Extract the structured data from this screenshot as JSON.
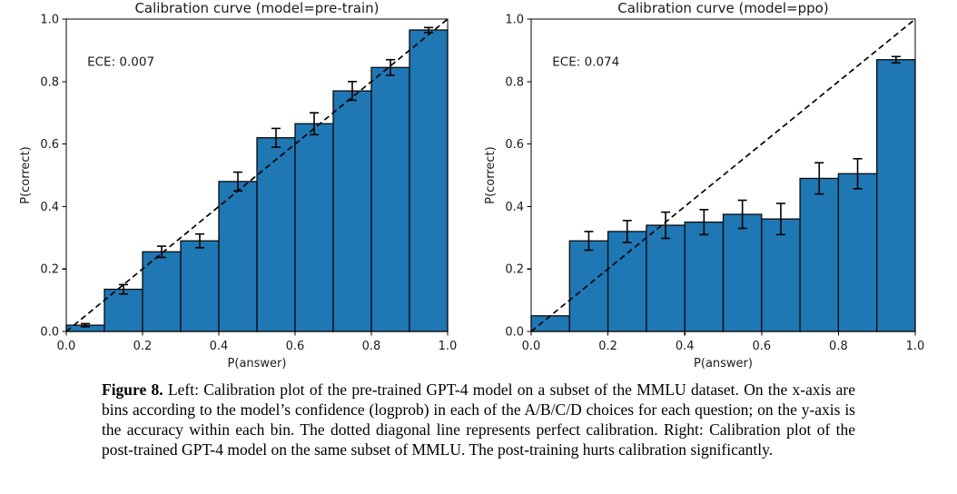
{
  "colors": {
    "background": "#ffffff",
    "bar_fill": "#1f77b4",
    "bar_edge": "#0a0a0a",
    "axis": "#000000",
    "text": "#1a1a1a",
    "diagonal": "#000000",
    "error_bar": "#000000"
  },
  "chart_data": [
    {
      "type": "bar",
      "title": "Calibration curve (model=pre-train)",
      "annotation": "ECE: 0.007",
      "xlabel": "P(answer)",
      "ylabel": "P(correct)",
      "xlim": [
        0,
        1
      ],
      "ylim": [
        0,
        1
      ],
      "grid": false,
      "xticks": [
        "0.0",
        "0.2",
        "0.4",
        "0.6",
        "0.8",
        "1.0"
      ],
      "yticks": [
        "0.0",
        "0.2",
        "0.4",
        "0.6",
        "0.8",
        "1.0"
      ],
      "bin_edges": [
        0.0,
        0.1,
        0.2,
        0.3,
        0.4,
        0.5,
        0.6,
        0.7,
        0.8,
        0.9,
        1.0
      ],
      "values": [
        0.02,
        0.135,
        0.255,
        0.29,
        0.48,
        0.62,
        0.665,
        0.77,
        0.845,
        0.965
      ],
      "errors": [
        0.005,
        0.015,
        0.018,
        0.022,
        0.03,
        0.03,
        0.035,
        0.03,
        0.025,
        0.008
      ],
      "diagonal": {
        "style": "dashed",
        "from": [
          0,
          0
        ],
        "to": [
          1,
          1
        ]
      }
    },
    {
      "type": "bar",
      "title": "Calibration curve (model=ppo)",
      "annotation": "ECE: 0.074",
      "xlabel": "P(answer)",
      "ylabel": "P(correct)",
      "xlim": [
        0,
        1
      ],
      "ylim": [
        0,
        1
      ],
      "grid": false,
      "xticks": [
        "0.0",
        "0.2",
        "0.4",
        "0.6",
        "0.8",
        "1.0"
      ],
      "yticks": [
        "0.0",
        "0.2",
        "0.4",
        "0.6",
        "0.8",
        "1.0"
      ],
      "bin_edges": [
        0.0,
        0.1,
        0.2,
        0.3,
        0.4,
        0.5,
        0.6,
        0.7,
        0.8,
        0.9,
        1.0
      ],
      "values": [
        0.05,
        0.29,
        0.32,
        0.34,
        0.35,
        0.375,
        0.36,
        0.49,
        0.505,
        0.87
      ],
      "errors": [
        0,
        0.03,
        0.035,
        0.042,
        0.04,
        0.045,
        0.05,
        0.05,
        0.048,
        0.01
      ],
      "diagonal": {
        "style": "dashed",
        "from": [
          0,
          0
        ],
        "to": [
          1,
          1
        ]
      }
    }
  ],
  "caption": {
    "label": "Figure 8.",
    "text": "Left: Calibration plot of the pre-trained GPT-4 model on a subset of the MMLU dataset. On the x-axis are bins according to the model’s confidence (logprob) in each of the A/B/C/D choices for each question; on the y-axis is the accuracy within each bin. The dotted diagonal line represents perfect calibration. Right: Calibration plot of the post-trained GPT-4 model on the same subset of MMLU. The post-training hurts calibration significantly."
  }
}
